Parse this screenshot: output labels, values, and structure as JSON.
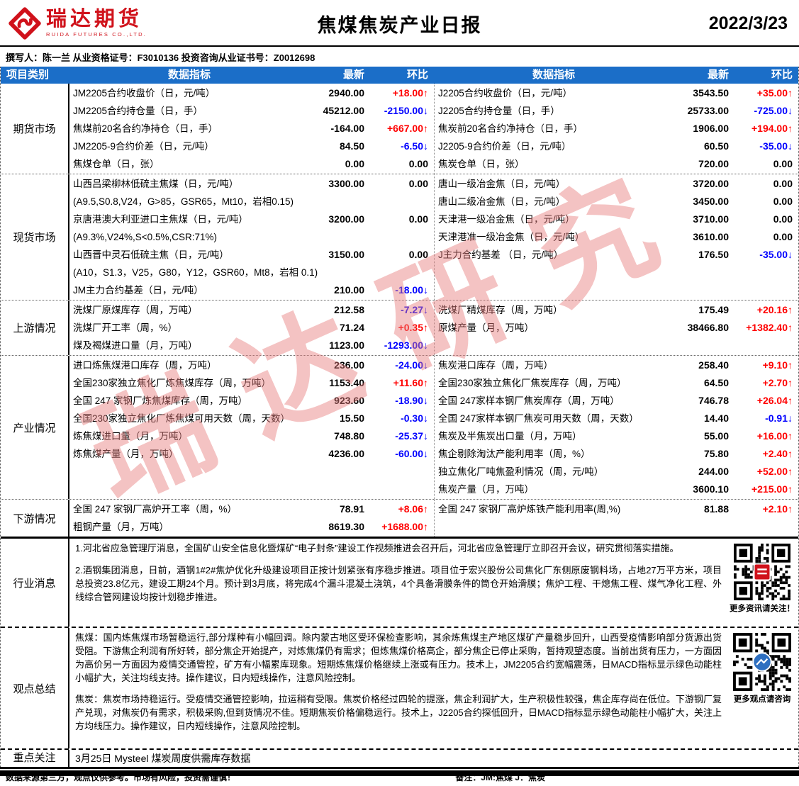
{
  "colors": {
    "accent_blue": "#1B6EC8",
    "up_red": "#FF0000",
    "down_blue": "#0000FF",
    "logo_red": "#D0121B",
    "watermark_red": "#E87C7C",
    "qr_badge_blue": "#2E6FC0"
  },
  "header": {
    "logo_cn": "瑞达期货",
    "logo_en": "RUIDA FUTURES CO.,LTD.",
    "title": "焦煤焦炭产业日报",
    "date": "2022/3/23"
  },
  "author_line": "撰写人：陈一兰  从业资格证号：F3010136   投资咨询从业证书号：Z0012698",
  "watermark": "瑞达研究",
  "table": {
    "headers": [
      "项目类别",
      "数据指标",
      "最新",
      "环比",
      "数据指标",
      "最新",
      "环比"
    ],
    "sections": [
      {
        "id": "futures",
        "category": "期货市场",
        "left": [
          {
            "label": "JM2205合约收盘价（日，元/吨）",
            "latest": "2940.00",
            "change": "+18.00"
          },
          {
            "label": "JM2205合约持仓量（日，手）",
            "latest": "45212.00",
            "change": "-2150.00"
          },
          {
            "label": "焦煤前20名合约净持仓（日，手）",
            "latest": "-164.00",
            "change": "+667.00"
          },
          {
            "label": "JM2205-9合约价差（日，元/吨）",
            "latest": "84.50",
            "change": "-6.50"
          },
          {
            "label": "焦煤仓单（日，张）",
            "latest": "0.00",
            "change": "0.00"
          }
        ],
        "right": [
          {
            "label": "J2205合约收盘价（日，元/吨）",
            "latest": "3543.50",
            "change": "+35.00"
          },
          {
            "label": "J2205合约持仓量（日，手）",
            "latest": "25733.00",
            "change": "-725.00"
          },
          {
            "label": "焦炭前20名合约净持仓（日，手）",
            "latest": "1906.00",
            "change": "+194.00"
          },
          {
            "label": "J2205-9合约价差（日，元/吨）",
            "latest": "60.50",
            "change": "-35.00"
          },
          {
            "label": "焦炭仓单（日，张）",
            "latest": "720.00",
            "change": "0.00"
          }
        ]
      },
      {
        "id": "spot",
        "category": "现货市场",
        "left": [
          {
            "label": "山西吕梁柳林低硫主焦煤（日，元/吨）",
            "latest": "3300.00",
            "change": "0.00"
          },
          {
            "label": "(A9.5,S0.8,V24，G>85，GSR65，Mt10，岩相0.15)",
            "latest": "",
            "change": ""
          },
          {
            "label": "京唐港澳大利亚进口主焦煤（日，元/吨）",
            "latest": "3200.00",
            "change": "0.00"
          },
          {
            "label": "(A9.3%,V24%,S<0.5%,CSR:71%)",
            "latest": "",
            "change": ""
          },
          {
            "label": "山西晋中灵石低硫主焦（日，元/吨）",
            "latest": "3150.00",
            "change": "0.00"
          },
          {
            "label": "(A10，S1.3，V25，G80，Y12，GSR60，Mt8，岩相 0.1)",
            "latest": "",
            "change": ""
          },
          {
            "label": "JM主力合约基差（日，元/吨）",
            "latest": "210.00",
            "change": "-18.00"
          }
        ],
        "right": [
          {
            "label": "唐山一级冶金焦（日，元/吨）",
            "latest": "3720.00",
            "change": "0.00"
          },
          {
            "label": "唐山二级冶金焦（日，元/吨）",
            "latest": "3450.00",
            "change": "0.00"
          },
          {
            "label": "天津港一级冶金焦（日，元/吨）",
            "latest": "3710.00",
            "change": "0.00"
          },
          {
            "label": "天津港准一级冶金焦（日，元/吨）",
            "latest": "3610.00",
            "change": "0.00"
          },
          {
            "label": "J主力合约基差 （日，元/吨）",
            "latest": "176.50",
            "change": "-35.00"
          }
        ]
      },
      {
        "id": "upstream",
        "category": "上游情况",
        "left": [
          {
            "label": "洗煤厂原煤库存（周，万吨）",
            "latest": "212.58",
            "change": "-7.27"
          },
          {
            "label": "洗煤厂开工率（周，%）",
            "latest": "71.24",
            "change": "+0.35"
          },
          {
            "label": "煤及褐煤进口量（月，万吨）",
            "latest": "1123.00",
            "change": "-1293.00"
          }
        ],
        "right": [
          {
            "label": "洗煤厂精煤库存（周，万吨）",
            "latest": "175.49",
            "change": "+20.16"
          },
          {
            "label": "原煤产量（月，万吨）",
            "latest": "38466.80",
            "change": "+1382.40"
          }
        ]
      },
      {
        "id": "industry",
        "category": "产业情况",
        "left": [
          {
            "label": "进口炼焦煤港口库存（周，万吨）",
            "latest": "236.00",
            "change": "-24.00"
          },
          {
            "label": "全国230家独立焦化厂炼焦煤库存（周，万吨）",
            "latest": "1153.40",
            "change": "+11.60"
          },
          {
            "label": "全国 247 家钢厂炼焦煤库存（周，万吨）",
            "latest": "923.60",
            "change": "-18.90"
          },
          {
            "label": "全国230家独立焦化厂炼焦煤可用天数（周，天数）",
            "latest": "15.50",
            "change": "-0.30"
          },
          {
            "label": "炼焦煤进口量（月，万吨）",
            "latest": "748.80",
            "change": "-25.37"
          },
          {
            "label": "炼焦煤产量（月，万吨）",
            "latest": "4236.00",
            "change": "-60.00"
          }
        ],
        "right": [
          {
            "label": "焦炭港口库存（周，万吨）",
            "latest": "258.40",
            "change": "+9.10"
          },
          {
            "label": "全国230家独立焦化厂焦炭库存（周，万吨）",
            "latest": "64.50",
            "change": "+2.70"
          },
          {
            "label": "全国 247家样本钢厂焦炭库存（周，万吨）",
            "latest": "746.78",
            "change": "+26.04"
          },
          {
            "label": "全国 247家样本钢厂焦炭可用天数（周，天数）",
            "latest": "14.40",
            "change": "-0.91"
          },
          {
            "label": "焦炭及半焦炭出口量（月，万吨）",
            "latest": "55.00",
            "change": "+16.00"
          },
          {
            "label": "焦企剔除淘汰产能利用率（周，%）",
            "latest": "75.80",
            "change": "+2.40"
          },
          {
            "label": "独立焦化厂吨焦盈利情况（周，元/吨）",
            "latest": "244.00",
            "change": "+52.00"
          },
          {
            "label": "焦炭产量（月，万吨）",
            "latest": "3600.10",
            "change": "+215.00"
          }
        ]
      },
      {
        "id": "downstream",
        "category": "下游情况",
        "left": [
          {
            "label": "全国 247 家钢厂高炉开工率（周，%）",
            "latest": "78.91",
            "change": "+8.06"
          },
          {
            "label": "粗钢产量（月，万吨）",
            "latest": "8619.30",
            "change": "+1688.00"
          }
        ],
        "right": [
          {
            "label": "全国 247 家钢厂高炉炼铁产能利用率(周,%)",
            "latest": "81.88",
            "change": "+2.10"
          }
        ]
      }
    ]
  },
  "news": {
    "category": "行业消息",
    "paragraphs": [
      "1.河北省应急管理厅消息，全国矿山安全信息化暨煤矿“电子封条”建设工作视频推进会召开后，河北省应急管理厅立即召开会议，研究贯彻落实措施。",
      "2.酒钢集团消息，日前，酒钢1#2#焦炉优化升级建设项目正按计划紧张有序稳步推进。项目位于宏兴股份公司焦化厂东侧原废钢料场，占地27万平方米，项目总投资23.8亿元，建设工期24个月。预计到3月底，将完成4个漏斗混凝土浇筑，4个具备滑膜条件的筒仓开始滑膜；焦炉工程、干熄焦工程、煤气净化工程、外线综合管网建设均按计划稳步推进。"
    ],
    "qr_caption": "更多资讯请关注！"
  },
  "summary": {
    "category": "观点总结",
    "paragraphs": [
      "焦煤：国内炼焦煤市场暂稳运行,部分煤种有小幅回调。除内蒙古地区受环保检查影响，其余炼焦煤主产地区煤矿产量稳步回升，山西受疫情影响部分货源出货受阻。下游焦企利润有所好转，部分焦企开始提产，对炼焦煤仍有需求；但炼焦煤价格高企，部分焦企已停止采购，暂持观望态度。当前出货有压力，一方面因为高价另一方面因为疫情交通管控，矿方有小幅累库现象。短期炼焦煤价格继续上涨或有压力。技术上，JM2205合约宽幅震荡，日MACD指标显示绿色动能柱小幅扩大，关注均线支持。操作建议，日内短线操作，注意风险控制。",
      "焦炭：焦炭市场持稳运行。受疫情交通管控影响，拉运稍有受限。焦炭价格经过四轮的提涨，焦企利润扩大，生产积极性较强，焦企库存尚在低位。下游钢厂复产兑现，对焦炭仍有需求，积极采购,但到货情况不佳。短期焦炭价格偏稳运行。技术上，J2205合约探低回升，日MACD指标显示绿色动能柱小幅扩大，关注上方均线压力。操作建议，日内短线操作，注意风险控制。"
    ],
    "qr_caption": "更多观点请咨询"
  },
  "focus": {
    "category": "重点关注",
    "text": "3月25日  Mysteel  煤炭周度供需库存数据"
  },
  "footer": {
    "disclaimer": "数据来源第三方，观点仅供参考。市场有风险，投资需谨慎！",
    "note": "备注：JM:焦煤 J：焦炭"
  }
}
